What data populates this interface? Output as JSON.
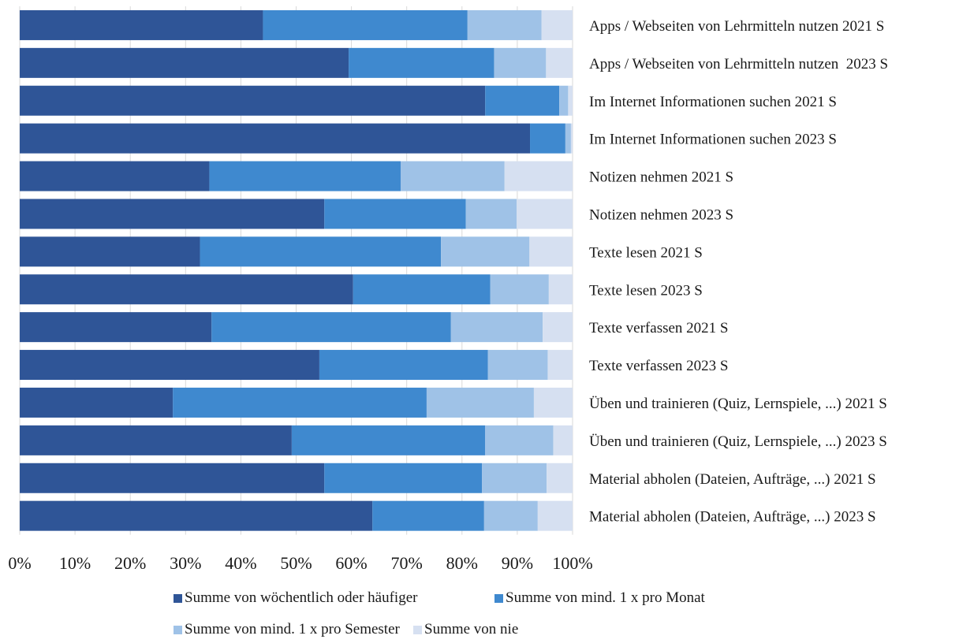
{
  "chart_data": {
    "type": "bar",
    "orientation": "horizontal",
    "stacked": "percent",
    "title": "",
    "xlabel": "",
    "ylabel": "",
    "xlim": [
      0,
      100
    ],
    "x_ticks": [
      "0%",
      "10%",
      "20%",
      "30%",
      "40%",
      "50%",
      "60%",
      "70%",
      "80%",
      "90%",
      "100%"
    ],
    "grid": true,
    "legend_position": "bottom",
    "categories": [
      "Apps / Webseiten von Lehrmitteln nutzen 2021 S",
      "Apps / Webseiten von Lehrmitteln nutzen  2023 S",
      "Im Internet Informationen suchen 2021 S",
      "Im Internet Informationen suchen 2023 S",
      "Notizen nehmen 2021 S",
      "Notizen nehmen 2023 S",
      "Texte lesen 2021 S",
      "Texte lesen 2023 S",
      "Texte verfassen 2021 S",
      "Texte verfassen 2023 S",
      "Üben und trainieren (Quiz, Lernspiele, ...) 2021 S",
      "Üben und trainieren (Quiz, Lernspiele, ...) 2023 S",
      "Material abholen (Dateien, Aufträge, ...) 2021 S",
      "Material abholen (Dateien, Aufträge, ...) 2023 S"
    ],
    "series": [
      {
        "name": "Summe von wöchentlich oder häufiger",
        "color": "#2f5597",
        "values": [
          44,
          59.5,
          84.2,
          92.3,
          34.3,
          55.1,
          32.6,
          60.3,
          34.7,
          54.2,
          27.7,
          49.2,
          55.1,
          63.8
        ]
      },
      {
        "name": "Summe von mind. 1 x pro Monat",
        "color": "#3f89cf",
        "values": [
          37,
          26.3,
          13.4,
          6.4,
          34.6,
          25.6,
          43.6,
          24.8,
          43.3,
          30.5,
          45.9,
          35.0,
          28.5,
          20.2
        ]
      },
      {
        "name": "Summe von mind. 1 x pro Semester",
        "color": "#9fc2e7",
        "values": [
          13.4,
          9.4,
          1.6,
          1.0,
          18.8,
          9.2,
          16.0,
          10.6,
          16.6,
          10.8,
          19.4,
          12.3,
          11.7,
          9.7
        ]
      },
      {
        "name": "Summe von nie",
        "color": "#d6e0f1",
        "values": [
          5.6,
          4.8,
          0.8,
          0.3,
          12.3,
          10.1,
          7.8,
          4.3,
          5.4,
          4.5,
          7.0,
          3.5,
          4.7,
          6.3
        ]
      }
    ]
  }
}
